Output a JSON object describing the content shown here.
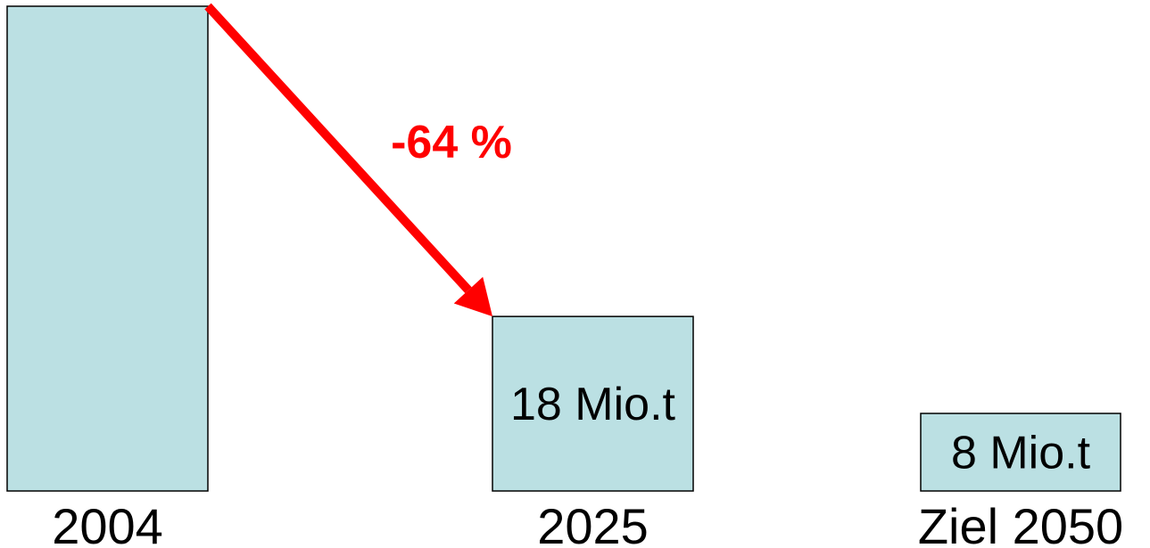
{
  "chart_data": {
    "type": "bar",
    "categories": [
      "2004",
      "2025",
      "Ziel 2050"
    ],
    "values": [
      50,
      18,
      8
    ],
    "value_labels": [
      "",
      "18 Mio.t",
      "8 Mio.t"
    ],
    "annotation": {
      "text": "-64 %",
      "from_category": "2004",
      "to_category": "2025"
    },
    "title": "",
    "xlabel": "",
    "ylabel": "",
    "ylim": [
      0,
      50
    ],
    "grid": false,
    "colors": {
      "bar_fill": "#bbe0e3",
      "bar_stroke": "#000000",
      "annotation": "#ff0000",
      "text": "#000000"
    }
  }
}
